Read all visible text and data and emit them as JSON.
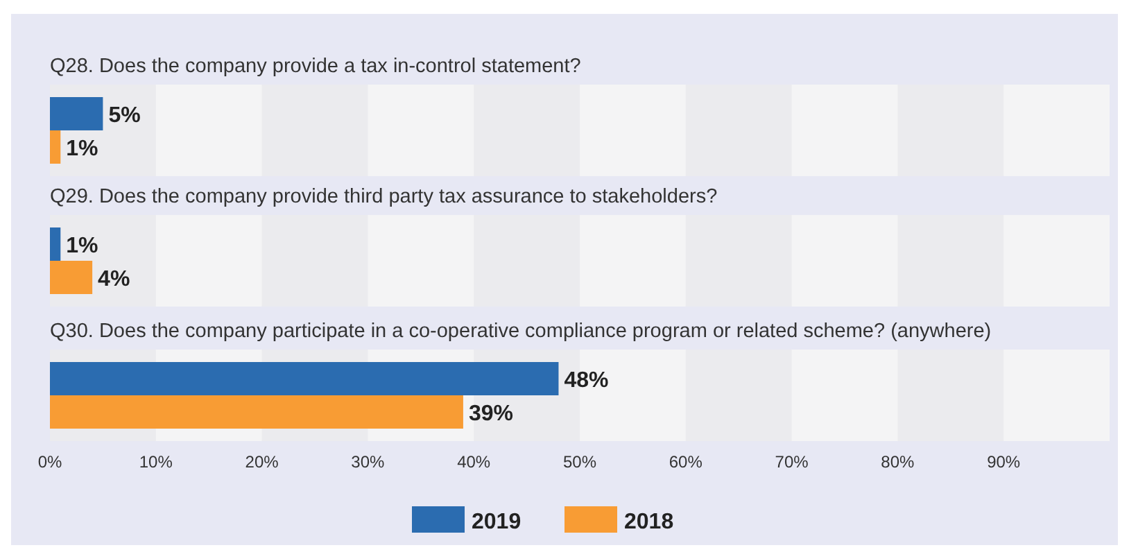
{
  "chart_data": {
    "type": "bar",
    "orientation": "horizontal",
    "categories": [
      "Q28. Does the company provide a tax in-control statement?",
      "Q29. Does the company provide third party tax assurance to stakeholders?",
      "Q30. Does the company participate in a co-operative compliance program or related scheme? (anywhere)"
    ],
    "series": [
      {
        "name": "2019",
        "color": "#2b6cb0",
        "values": [
          5,
          1,
          48
        ],
        "value_labels": [
          "5%",
          "1%",
          "48%"
        ]
      },
      {
        "name": "2018",
        "color": "#f89c34",
        "values": [
          1,
          4,
          39
        ],
        "value_labels": [
          "1%",
          "4%",
          "39%"
        ]
      }
    ],
    "xlim": [
      0,
      100
    ],
    "xticks": [
      {
        "value": 0,
        "label": "0%"
      },
      {
        "value": 10,
        "label": "10%"
      },
      {
        "value": 20,
        "label": "20%"
      },
      {
        "value": 30,
        "label": "30%"
      },
      {
        "value": 40,
        "label": "40%"
      },
      {
        "value": 50,
        "label": "50%"
      },
      {
        "value": 60,
        "label": "60%"
      },
      {
        "value": 70,
        "label": "70%"
      },
      {
        "value": 80,
        "label": "80%"
      },
      {
        "value": 90,
        "label": "90%"
      }
    ],
    "legend": "bottom"
  }
}
